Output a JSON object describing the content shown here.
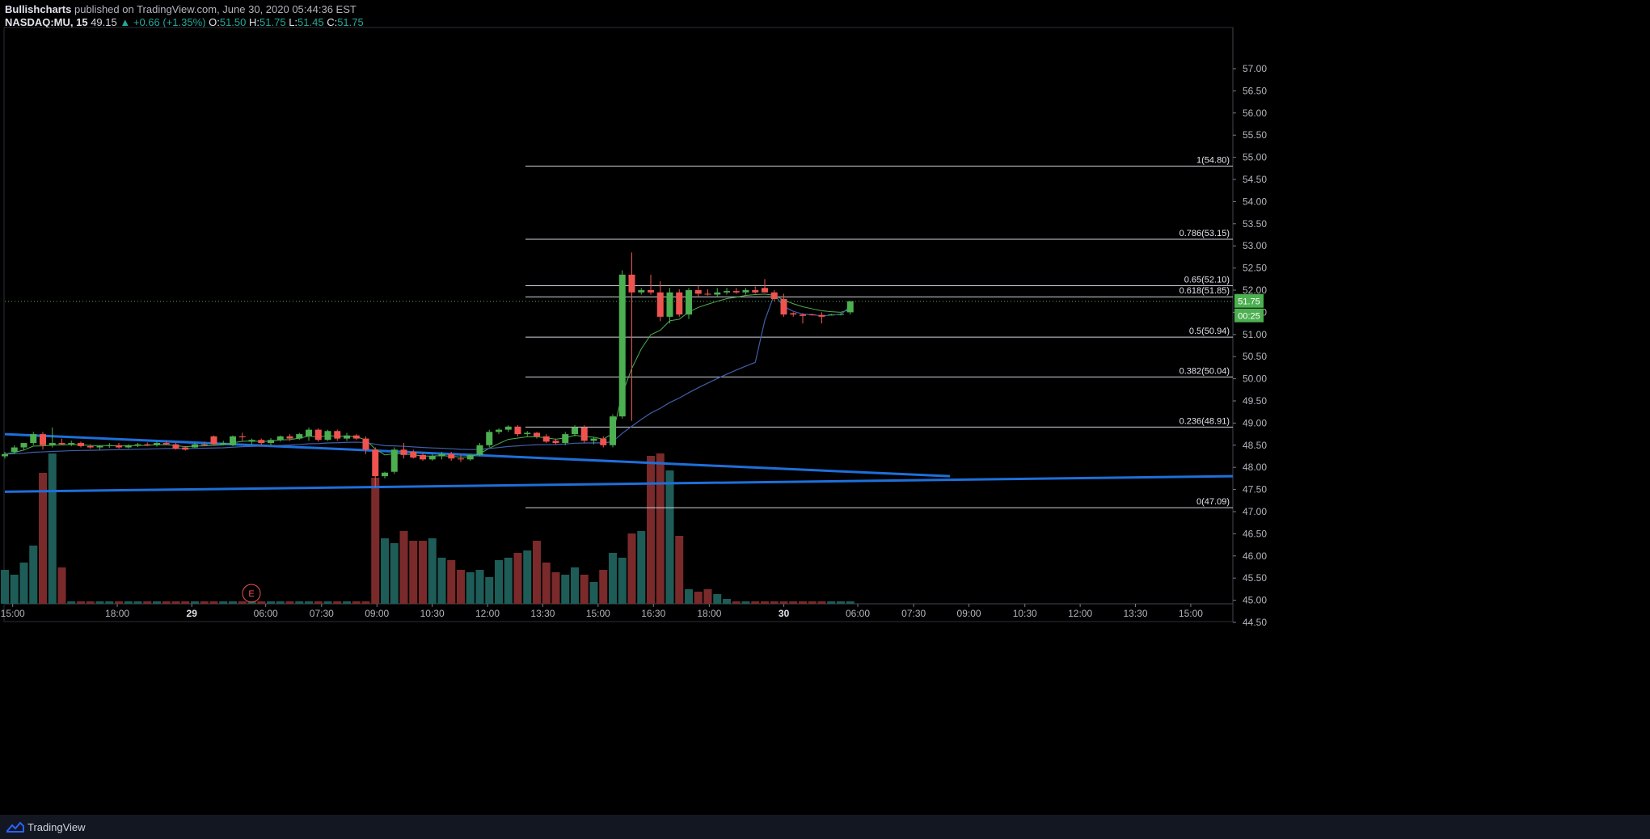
{
  "header": {
    "author": "Bullishcharts",
    "published": "published on TradingView.com, June 30, 2020 05:44:36 EST",
    "symbol": "NASDAQ:MU, 15",
    "last": "49.15",
    "change": "▲ +0.66 (+1.35%)",
    "o_label": "O:",
    "o_value": "51.50",
    "h_label": "H:",
    "h_value": "51.75",
    "l_label": "L:",
    "l_value": "51.45",
    "c_label": "C:",
    "c_value": "51.75"
  },
  "footer": {
    "brand": "TradingView"
  },
  "colors": {
    "up": "#4caf50",
    "down": "#ef5350",
    "vol_up": "#1e5c58",
    "vol_down": "#7a2a2a",
    "trend": "#1e6fd9",
    "fib": "#d1d4dc",
    "ema": "#4caf50",
    "vwap": "#3f5fa8",
    "bg": "#000000"
  },
  "chart_data": {
    "type": "candlestick",
    "ylim": [
      44.5,
      57.0
    ],
    "price_ticks": [
      "57.00",
      "56.50",
      "56.00",
      "55.50",
      "55.00",
      "54.50",
      "54.00",
      "53.50",
      "53.00",
      "52.50",
      "52.00",
      "51.50",
      "51.00",
      "50.50",
      "50.00",
      "49.50",
      "49.00",
      "48.50",
      "48.00",
      "47.50",
      "47.00",
      "46.50",
      "46.00",
      "45.50",
      "45.00",
      "44.50"
    ],
    "time_ticks": [
      "15:00",
      "18:00",
      "29",
      "06:00",
      "07:30",
      "09:00",
      "10:30",
      "12:00",
      "13:30",
      "15:00",
      "16:30",
      "18:00",
      "30",
      "06:00",
      "07:30",
      "09:00",
      "10:30",
      "12:00",
      "13:30",
      "15:00"
    ],
    "last_price": "51.75",
    "countdown": "00:25",
    "earnings_marker": "E",
    "fibonacci": [
      {
        "label": "1(54.80)",
        "value": 54.8
      },
      {
        "label": "0.786(53.15)",
        "value": 53.15
      },
      {
        "label": "0.65(52.10)",
        "value": 52.1
      },
      {
        "label": "0.618(51.85)",
        "value": 51.85
      },
      {
        "label": "0.5(50.94)",
        "value": 50.94
      },
      {
        "label": "0.382(50.04)",
        "value": 50.04
      },
      {
        "label": "0.236(48.91)",
        "value": 48.91
      },
      {
        "label": "0(47.09)",
        "value": 47.09
      }
    ],
    "trendlines": [
      {
        "from_price": 48.75,
        "to_price": 47.8
      },
      {
        "from_price": 47.45,
        "to_price": 47.8
      }
    ],
    "candles": [
      {
        "o": 48.25,
        "h": 48.35,
        "l": 48.2,
        "c": 48.3
      },
      {
        "o": 48.35,
        "h": 48.5,
        "l": 48.3,
        "c": 48.45
      },
      {
        "o": 48.45,
        "h": 48.55,
        "l": 48.4,
        "c": 48.55
      },
      {
        "o": 48.55,
        "h": 48.8,
        "l": 48.5,
        "c": 48.75
      },
      {
        "o": 48.75,
        "h": 48.8,
        "l": 48.4,
        "c": 48.5
      },
      {
        "o": 48.5,
        "h": 48.9,
        "l": 48.45,
        "c": 48.55
      },
      {
        "o": 48.55,
        "h": 48.65,
        "l": 48.5,
        "c": 48.52
      },
      {
        "o": 48.52,
        "h": 48.6,
        "l": 48.48,
        "c": 48.55
      },
      {
        "o": 48.55,
        "h": 48.58,
        "l": 48.45,
        "c": 48.48
      },
      {
        "o": 48.48,
        "h": 48.52,
        "l": 48.42,
        "c": 48.45
      },
      {
        "o": 48.45,
        "h": 48.5,
        "l": 48.4,
        "c": 48.48
      },
      {
        "o": 48.48,
        "h": 48.55,
        "l": 48.44,
        "c": 48.5
      },
      {
        "o": 48.5,
        "h": 48.55,
        "l": 48.42,
        "c": 48.45
      },
      {
        "o": 48.45,
        "h": 48.52,
        "l": 48.43,
        "c": 48.5
      },
      {
        "o": 48.5,
        "h": 48.55,
        "l": 48.46,
        "c": 48.52
      },
      {
        "o": 48.52,
        "h": 48.56,
        "l": 48.48,
        "c": 48.5
      },
      {
        "o": 48.5,
        "h": 48.58,
        "l": 48.47,
        "c": 48.55
      },
      {
        "o": 48.55,
        "h": 48.6,
        "l": 48.5,
        "c": 48.52
      },
      {
        "o": 48.52,
        "h": 48.55,
        "l": 48.4,
        "c": 48.42
      },
      {
        "o": 48.45,
        "h": 48.48,
        "l": 48.38,
        "c": 48.4
      },
      {
        "o": 48.45,
        "h": 48.55,
        "l": 48.44,
        "c": 48.52
      },
      {
        "o": 48.52,
        "h": 48.58,
        "l": 48.48,
        "c": 48.5
      },
      {
        "o": 48.7,
        "h": 48.72,
        "l": 48.5,
        "c": 48.52
      },
      {
        "o": 48.52,
        "h": 48.6,
        "l": 48.5,
        "c": 48.55
      },
      {
        "o": 48.5,
        "h": 48.72,
        "l": 48.48,
        "c": 48.7
      },
      {
        "o": 48.7,
        "h": 48.78,
        "l": 48.6,
        "c": 48.68
      },
      {
        "o": 48.58,
        "h": 48.65,
        "l": 48.52,
        "c": 48.62
      },
      {
        "o": 48.62,
        "h": 48.65,
        "l": 48.5,
        "c": 48.55
      },
      {
        "o": 48.55,
        "h": 48.66,
        "l": 48.5,
        "c": 48.62
      },
      {
        "o": 48.62,
        "h": 48.72,
        "l": 48.58,
        "c": 48.7
      },
      {
        "o": 48.7,
        "h": 48.75,
        "l": 48.6,
        "c": 48.65
      },
      {
        "o": 48.65,
        "h": 48.78,
        "l": 48.62,
        "c": 48.75
      },
      {
        "o": 48.7,
        "h": 48.9,
        "l": 48.6,
        "c": 48.85
      },
      {
        "o": 48.85,
        "h": 48.88,
        "l": 48.58,
        "c": 48.62
      },
      {
        "o": 48.62,
        "h": 48.85,
        "l": 48.6,
        "c": 48.82
      },
      {
        "o": 48.82,
        "h": 48.85,
        "l": 48.6,
        "c": 48.65
      },
      {
        "o": 48.65,
        "h": 48.78,
        "l": 48.6,
        "c": 48.72
      },
      {
        "o": 48.72,
        "h": 48.75,
        "l": 48.62,
        "c": 48.65
      },
      {
        "o": 48.65,
        "h": 48.7,
        "l": 48.3,
        "c": 48.4
      },
      {
        "o": 48.4,
        "h": 48.45,
        "l": 47.55,
        "c": 47.8
      },
      {
        "o": 47.8,
        "h": 47.9,
        "l": 47.75,
        "c": 47.88
      },
      {
        "o": 47.9,
        "h": 48.45,
        "l": 47.85,
        "c": 48.4
      },
      {
        "o": 48.4,
        "h": 48.55,
        "l": 48.2,
        "c": 48.28
      },
      {
        "o": 48.35,
        "h": 48.4,
        "l": 48.2,
        "c": 48.22
      },
      {
        "o": 48.28,
        "h": 48.32,
        "l": 48.15,
        "c": 48.18
      },
      {
        "o": 48.18,
        "h": 48.3,
        "l": 48.15,
        "c": 48.25
      },
      {
        "o": 48.25,
        "h": 48.35,
        "l": 48.18,
        "c": 48.3
      },
      {
        "o": 48.3,
        "h": 48.35,
        "l": 48.15,
        "c": 48.2
      },
      {
        "o": 48.2,
        "h": 48.28,
        "l": 48.12,
        "c": 48.18
      },
      {
        "o": 48.18,
        "h": 48.3,
        "l": 48.15,
        "c": 48.28
      },
      {
        "o": 48.28,
        "h": 48.55,
        "l": 48.25,
        "c": 48.5
      },
      {
        "o": 48.5,
        "h": 48.85,
        "l": 48.45,
        "c": 48.8
      },
      {
        "o": 48.8,
        "h": 48.88,
        "l": 48.75,
        "c": 48.85
      },
      {
        "o": 48.85,
        "h": 48.95,
        "l": 48.8,
        "c": 48.92
      },
      {
        "o": 48.92,
        "h": 48.95,
        "l": 48.7,
        "c": 48.75
      },
      {
        "o": 48.75,
        "h": 48.82,
        "l": 48.7,
        "c": 48.78
      },
      {
        "o": 48.78,
        "h": 48.8,
        "l": 48.65,
        "c": 48.7
      },
      {
        "o": 48.7,
        "h": 48.75,
        "l": 48.55,
        "c": 48.58
      },
      {
        "o": 48.6,
        "h": 48.65,
        "l": 48.52,
        "c": 48.55
      },
      {
        "o": 48.55,
        "h": 48.8,
        "l": 48.5,
        "c": 48.75
      },
      {
        "o": 48.75,
        "h": 48.95,
        "l": 48.7,
        "c": 48.9
      },
      {
        "o": 48.9,
        "h": 48.95,
        "l": 48.55,
        "c": 48.6
      },
      {
        "o": 48.6,
        "h": 48.68,
        "l": 48.52,
        "c": 48.65
      },
      {
        "o": 48.65,
        "h": 48.7,
        "l": 48.45,
        "c": 48.5
      },
      {
        "o": 48.5,
        "h": 49.2,
        "l": 48.45,
        "c": 49.15
      },
      {
        "o": 49.15,
        "h": 52.45,
        "l": 49.1,
        "c": 52.35
      },
      {
        "o": 52.35,
        "h": 52.85,
        "l": 49.05,
        "c": 51.95
      },
      {
        "o": 51.95,
        "h": 52.05,
        "l": 51.9,
        "c": 52.0
      },
      {
        "o": 52.0,
        "h": 52.35,
        "l": 51.9,
        "c": 51.95
      },
      {
        "o": 51.95,
        "h": 52.2,
        "l": 51.3,
        "c": 51.4
      },
      {
        "o": 51.4,
        "h": 52.05,
        "l": 51.25,
        "c": 51.95
      },
      {
        "o": 51.95,
        "h": 52.02,
        "l": 51.4,
        "c": 51.45
      },
      {
        "o": 51.45,
        "h": 52.05,
        "l": 51.35,
        "c": 52.0
      },
      {
        "o": 52.0,
        "h": 52.1,
        "l": 51.85,
        "c": 51.92
      },
      {
        "o": 51.92,
        "h": 52.02,
        "l": 51.88,
        "c": 51.9
      },
      {
        "o": 51.9,
        "h": 52.05,
        "l": 51.85,
        "c": 51.95
      },
      {
        "o": 51.95,
        "h": 52.05,
        "l": 51.9,
        "c": 51.98
      },
      {
        "o": 51.98,
        "h": 52.05,
        "l": 51.92,
        "c": 51.95
      },
      {
        "o": 51.95,
        "h": 52.05,
        "l": 51.9,
        "c": 52.0
      },
      {
        "o": 52.0,
        "h": 52.08,
        "l": 51.92,
        "c": 51.95
      },
      {
        "o": 52.05,
        "h": 52.25,
        "l": 51.95,
        "c": 51.95
      },
      {
        "o": 51.95,
        "h": 52.0,
        "l": 51.75,
        "c": 51.8
      },
      {
        "o": 51.8,
        "h": 51.92,
        "l": 51.4,
        "c": 51.45
      },
      {
        "o": 51.48,
        "h": 51.5,
        "l": 51.4,
        "c": 51.45
      },
      {
        "o": 51.45,
        "h": 51.48,
        "l": 51.25,
        "c": 51.42
      },
      {
        "o": 51.45,
        "h": 51.47,
        "l": 51.43,
        "c": 51.44
      },
      {
        "o": 51.44,
        "h": 51.5,
        "l": 51.25,
        "c": 51.4
      },
      {
        "o": 51.45,
        "h": 51.47,
        "l": 51.43,
        "c": 51.45
      },
      {
        "o": 51.45,
        "h": 51.48,
        "l": 51.43,
        "c": 51.46
      },
      {
        "o": 51.5,
        "h": 51.75,
        "l": 51.45,
        "c": 51.75
      }
    ],
    "volumes": [
      0.14,
      0.12,
      0.17,
      0.24,
      0.54,
      0.62,
      0.15,
      0.01,
      0.01,
      0.01,
      0.01,
      0.01,
      0.01,
      0.01,
      0.01,
      0.01,
      0.01,
      0.01,
      0.01,
      0.01,
      0.01,
      0.01,
      0.01,
      0.01,
      0.01,
      0.01,
      0.01,
      0.01,
      0.01,
      0.01,
      0.01,
      0.01,
      0.01,
      0.01,
      0.01,
      0.01,
      0.01,
      0.01,
      0.01,
      0.52,
      0.27,
      0.25,
      0.3,
      0.26,
      0.26,
      0.27,
      0.19,
      0.18,
      0.14,
      0.13,
      0.14,
      0.11,
      0.18,
      0.19,
      0.21,
      0.22,
      0.26,
      0.17,
      0.13,
      0.12,
      0.15,
      0.12,
      0.09,
      0.14,
      0.21,
      0.19,
      0.29,
      0.3,
      0.61,
      0.62,
      0.55,
      0.28,
      0.06,
      0.05,
      0.06,
      0.04,
      0.02,
      0.01,
      0.01,
      0.01,
      0.01,
      0.01,
      0.01,
      0.01,
      0.01,
      0.01,
      0.01,
      0.01,
      0.01,
      0.01
    ]
  }
}
